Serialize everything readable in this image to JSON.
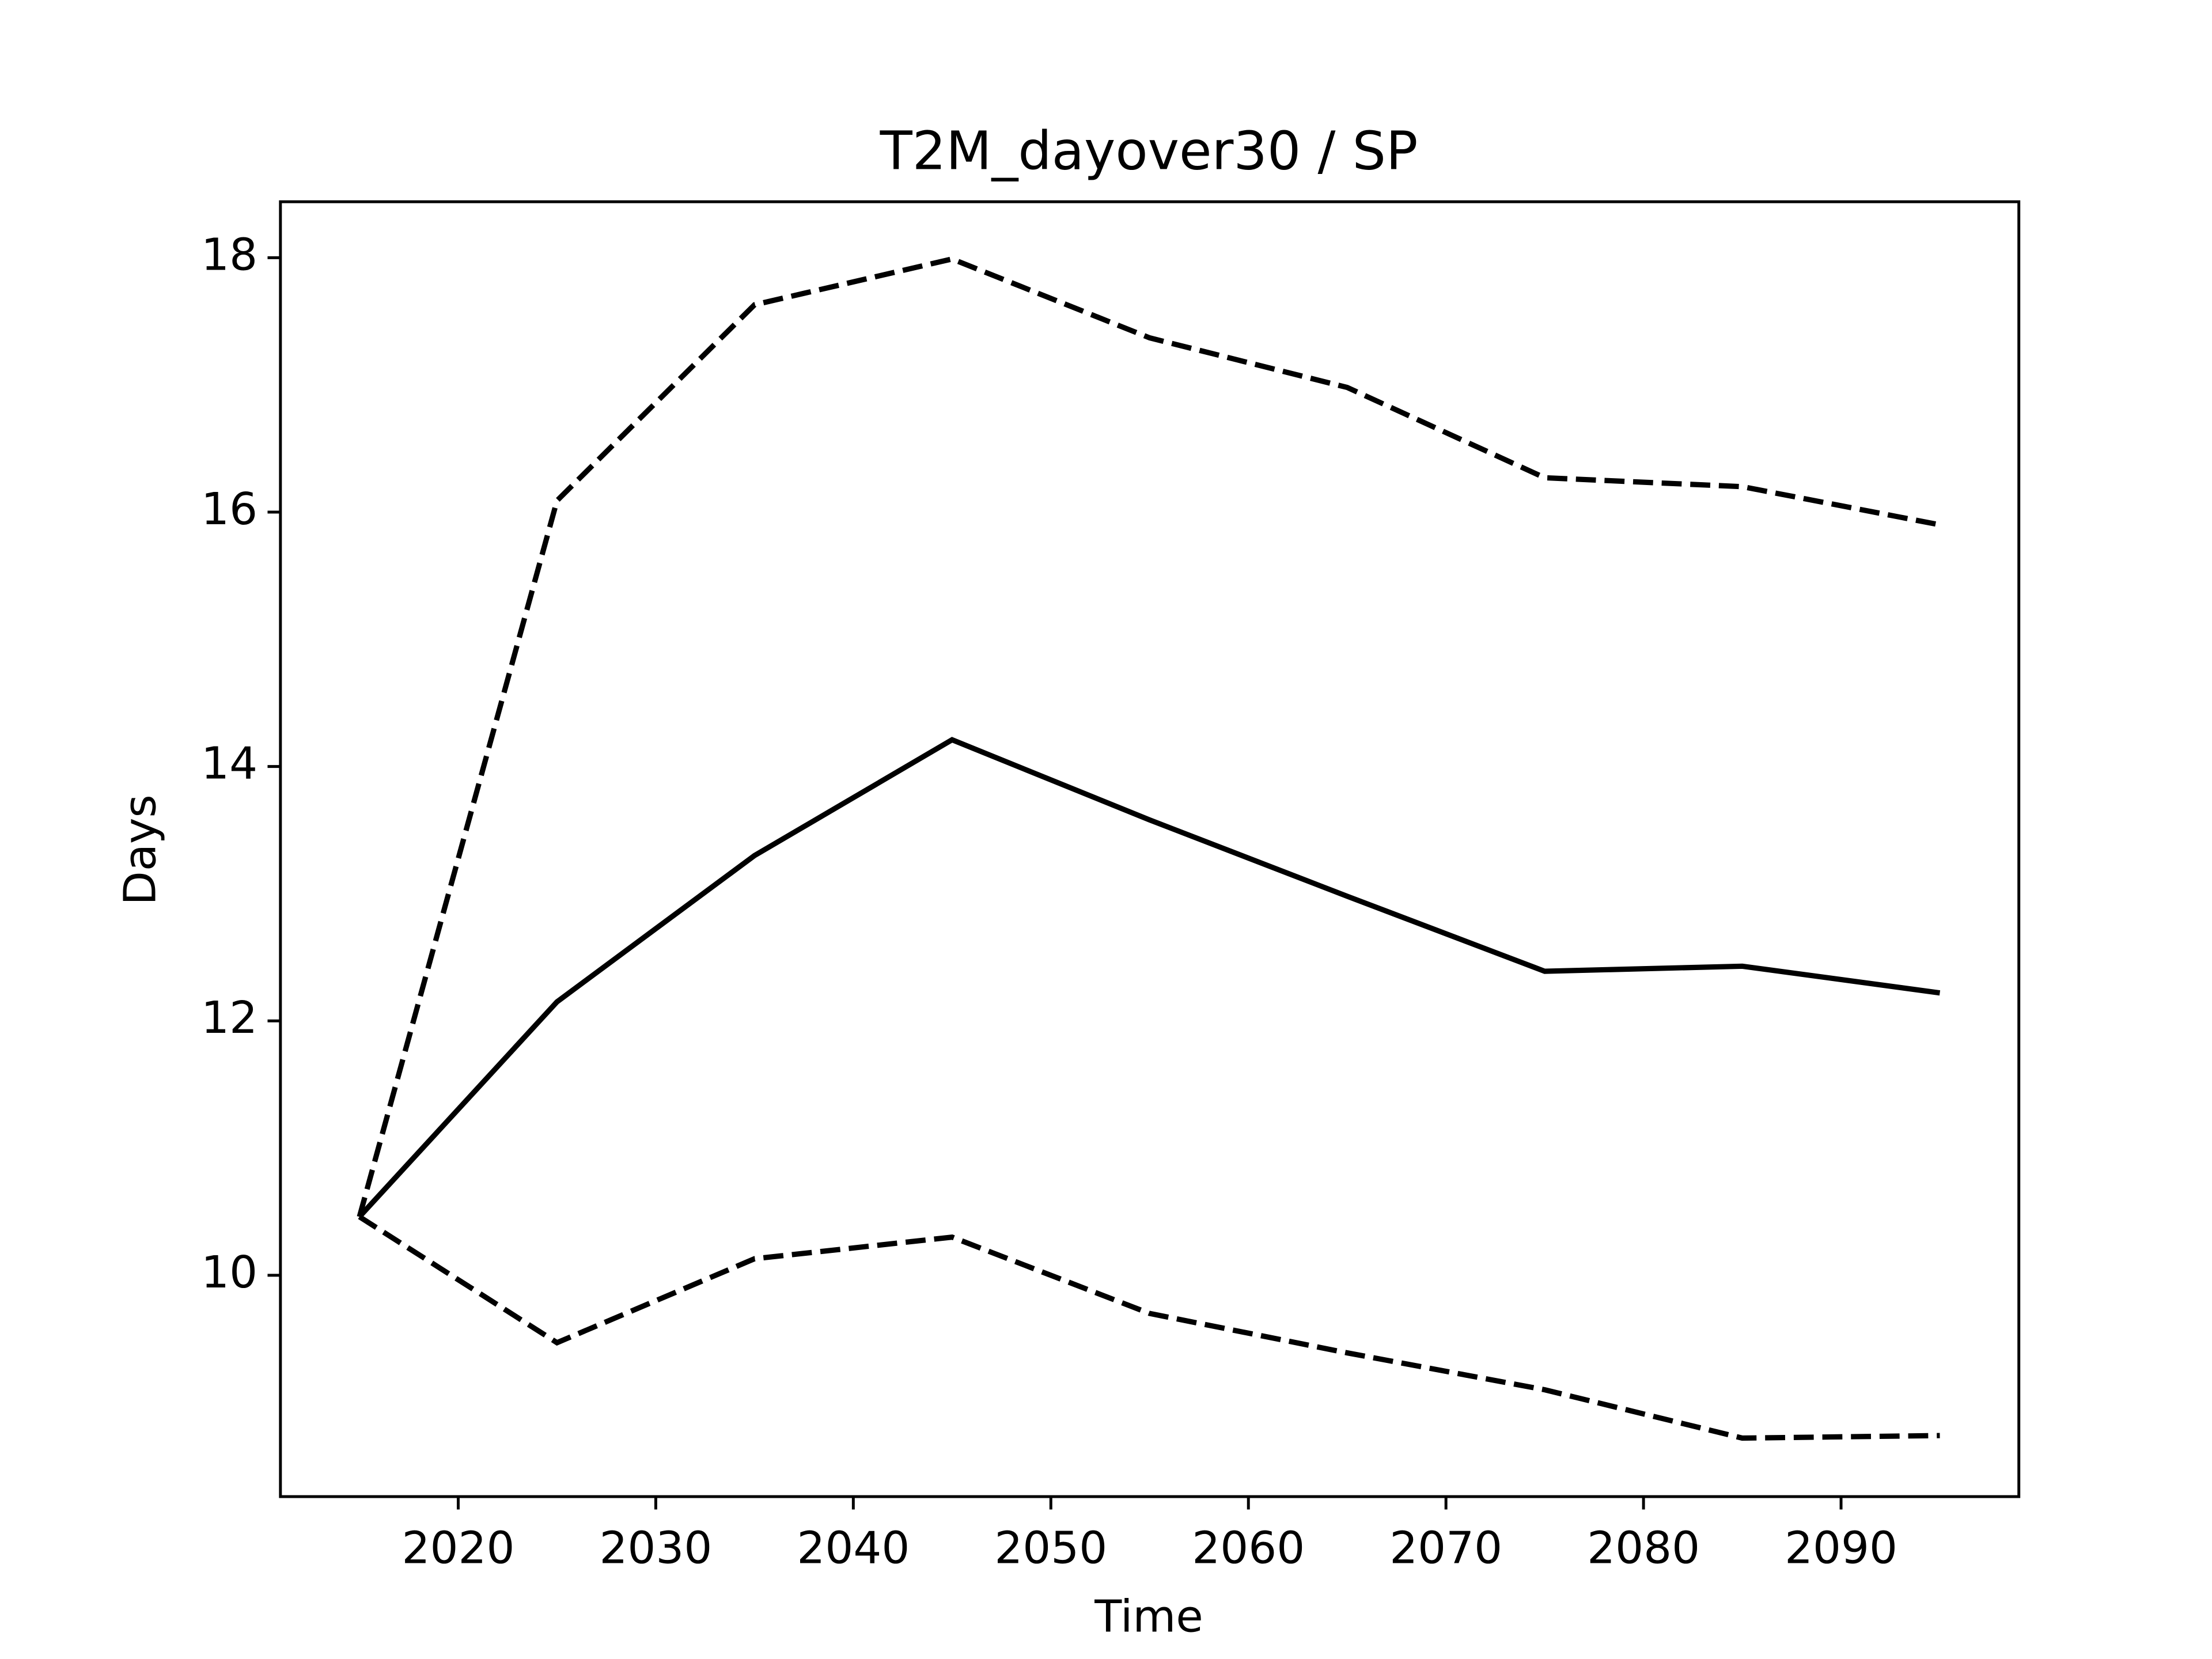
{
  "chart_data": {
    "type": "line",
    "title": "T2M_dayover30 / SP",
    "xlabel": "Time",
    "ylabel": "Days",
    "x": [
      2015,
      2025,
      2035,
      2045,
      2055,
      2065,
      2075,
      2085,
      2095
    ],
    "series": [
      {
        "color": "#000000",
        "linestyle": "solid",
        "values": [
          10.46,
          12.15,
          13.3,
          14.21,
          13.58,
          12.98,
          12.39,
          12.43,
          12.22
        ]
      },
      {
        "color": "#000000",
        "linestyle": "dashed",
        "values": [
          10.46,
          16.09,
          17.63,
          17.99,
          17.37,
          16.98,
          16.27,
          16.2,
          15.9
        ]
      },
      {
        "color": "#000000",
        "linestyle": "dashed",
        "values": [
          10.46,
          9.47,
          10.13,
          10.3,
          9.7,
          9.39,
          9.1,
          8.72,
          8.74
        ]
      }
    ],
    "xlim": [
      2011,
      2099
    ],
    "xticks": [
      2020,
      2030,
      2040,
      2050,
      2060,
      2070,
      2080,
      2090
    ],
    "ylim": [
      8.26,
      18.44
    ],
    "yticks": [
      10,
      12,
      14,
      16,
      18
    ],
    "grid": false
  }
}
